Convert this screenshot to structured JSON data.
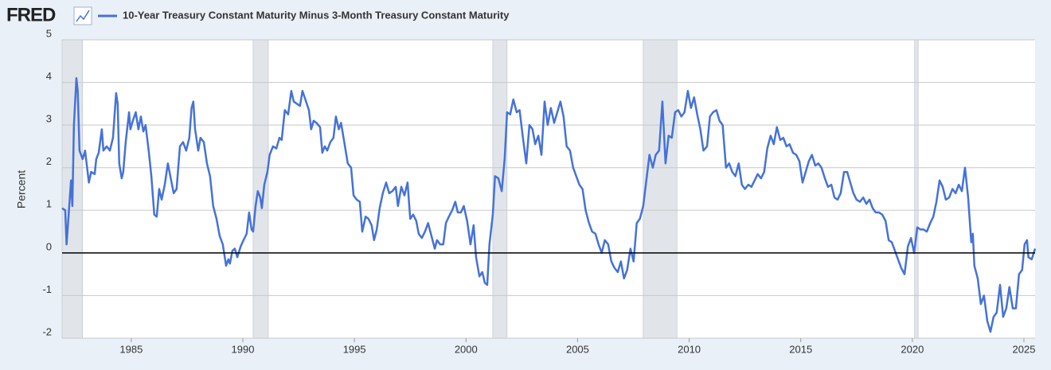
{
  "chart_data": {
    "type": "line",
    "logo": "FRED",
    "y_label": "Percent",
    "grid": true,
    "zero_line": true,
    "xlim": [
      1981.9,
      2025.5
    ],
    "ylim": [
      -2,
      5
    ],
    "xticks": [
      1985,
      1990,
      1995,
      2000,
      2005,
      2010,
      2015,
      2020,
      2025
    ],
    "yticks": [
      -2,
      -1,
      0,
      1,
      2,
      3,
      4,
      5
    ],
    "recession_color": "#e1e5ea",
    "recessions": [
      [
        1981.9,
        1982.82
      ],
      [
        1990.46,
        1991.14
      ],
      [
        2001.2,
        2001.84
      ],
      [
        2007.94,
        2009.45
      ],
      [
        2020.1,
        2020.26
      ]
    ],
    "x": [
      1981.9,
      1982.04,
      1982.1,
      1982.3,
      1982.36,
      1982.43,
      1982.54,
      1982.6,
      1982.68,
      1982.82,
      1982.93,
      1983.1,
      1983.2,
      1983.36,
      1983.43,
      1983.54,
      1983.68,
      1983.75,
      1983.9,
      1984.04,
      1984.18,
      1984.32,
      1984.39,
      1984.46,
      1984.57,
      1984.64,
      1984.75,
      1984.9,
      1984.96,
      1985.07,
      1985.2,
      1985.32,
      1985.43,
      1985.54,
      1985.64,
      1985.78,
      1985.9,
      1986.03,
      1986.14,
      1986.25,
      1986.36,
      1986.5,
      1986.64,
      1986.75,
      1986.9,
      1987.03,
      1987.18,
      1987.32,
      1987.46,
      1987.6,
      1987.7,
      1987.78,
      1987.86,
      1988.0,
      1988.1,
      1988.25,
      1988.39,
      1988.53,
      1988.67,
      1988.82,
      1988.96,
      1989.1,
      1989.25,
      1989.35,
      1989.42,
      1989.53,
      1989.64,
      1989.75,
      1989.9,
      1990.03,
      1990.17,
      1990.28,
      1990.39,
      1990.46,
      1990.57,
      1990.67,
      1990.78,
      1990.85,
      1990.96,
      1991.1,
      1991.2,
      1991.35,
      1991.5,
      1991.64,
      1991.74,
      1991.88,
      1992.03,
      1992.17,
      1992.28,
      1992.42,
      1992.56,
      1992.67,
      1992.8,
      1992.96,
      1993.06,
      1993.17,
      1993.3,
      1993.46,
      1993.56,
      1993.67,
      1993.78,
      1993.92,
      1994.06,
      1994.17,
      1994.3,
      1994.4,
      1994.56,
      1994.7,
      1994.85,
      1994.96,
      1995.1,
      1995.24,
      1995.35,
      1995.5,
      1995.63,
      1995.77,
      1995.88,
      1996.0,
      1996.13,
      1996.27,
      1996.42,
      1996.56,
      1996.7,
      1996.85,
      1996.95,
      1997.1,
      1997.24,
      1997.38,
      1997.5,
      1997.63,
      1997.77,
      1997.88,
      1998.02,
      1998.16,
      1998.3,
      1998.45,
      1998.6,
      1998.7,
      1998.84,
      1998.98,
      1999.1,
      1999.23,
      1999.38,
      1999.52,
      1999.63,
      1999.77,
      1999.9,
      2000.05,
      2000.2,
      2000.34,
      2000.45,
      2000.6,
      2000.73,
      2000.84,
      2000.95,
      2001.05,
      2001.2,
      2001.3,
      2001.45,
      2001.6,
      2001.73,
      2001.84,
      2001.98,
      2002.12,
      2002.27,
      2002.4,
      2002.55,
      2002.7,
      2002.84,
      2002.98,
      2003.1,
      2003.24,
      2003.38,
      2003.52,
      2003.66,
      2003.8,
      2003.95,
      2004.09,
      2004.23,
      2004.37,
      2004.51,
      2004.66,
      2004.8,
      2004.94,
      2005.08,
      2005.22,
      2005.36,
      2005.51,
      2005.65,
      2005.8,
      2005.94,
      2006.08,
      2006.22,
      2006.37,
      2006.51,
      2006.65,
      2006.8,
      2006.94,
      2007.08,
      2007.22,
      2007.37,
      2007.51,
      2007.65,
      2007.79,
      2007.94,
      2008.08,
      2008.22,
      2008.37,
      2008.5,
      2008.65,
      2008.8,
      2008.94,
      2009.08,
      2009.22,
      2009.37,
      2009.51,
      2009.65,
      2009.79,
      2009.94,
      2010.08,
      2010.22,
      2010.36,
      2010.5,
      2010.64,
      2010.8,
      2010.93,
      2011.07,
      2011.22,
      2011.36,
      2011.5,
      2011.65,
      2011.79,
      2011.93,
      2012.07,
      2012.22,
      2012.36,
      2012.5,
      2012.65,
      2012.79,
      2012.93,
      2013.07,
      2013.22,
      2013.36,
      2013.5,
      2013.65,
      2013.79,
      2013.93,
      2014.08,
      2014.22,
      2014.36,
      2014.5,
      2014.65,
      2014.8,
      2014.94,
      2015.08,
      2015.22,
      2015.36,
      2015.5,
      2015.65,
      2015.79,
      2015.93,
      2016.08,
      2016.22,
      2016.37,
      2016.51,
      2016.65,
      2016.79,
      2016.94,
      2017.08,
      2017.22,
      2017.36,
      2017.5,
      2017.65,
      2017.8,
      2017.94,
      2018.08,
      2018.22,
      2018.36,
      2018.5,
      2018.65,
      2018.8,
      2018.94,
      2019.08,
      2019.22,
      2019.36,
      2019.5,
      2019.65,
      2019.8,
      2019.94,
      2020.08,
      2020.22,
      2020.36,
      2020.5,
      2020.65,
      2020.8,
      2020.94,
      2021.08,
      2021.22,
      2021.36,
      2021.5,
      2021.65,
      2021.8,
      2021.94,
      2022.08,
      2022.22,
      2022.36,
      2022.5,
      2022.64,
      2022.71,
      2022.78,
      2022.93,
      2023.07,
      2023.21,
      2023.36,
      2023.5,
      2023.64,
      2023.78,
      2023.93,
      2024.07,
      2024.21,
      2024.35,
      2024.5,
      2024.64,
      2024.78,
      2024.92,
      2025.03,
      2025.14,
      2025.2,
      2025.35,
      2025.5
    ],
    "series": [
      {
        "name": "10-Year Treasury Constant Maturity Minus 3-Month Treasury Constant Maturity",
        "color": "#4572d8",
        "values": [
          1.05,
          1.0,
          0.2,
          1.7,
          1.1,
          3.0,
          4.1,
          3.8,
          2.4,
          2.2,
          2.4,
          1.65,
          1.9,
          1.85,
          2.2,
          2.35,
          2.9,
          2.4,
          2.5,
          2.4,
          2.7,
          3.75,
          3.5,
          2.1,
          1.75,
          1.9,
          2.6,
          3.3,
          2.9,
          3.1,
          3.3,
          2.9,
          3.2,
          2.85,
          3.0,
          2.4,
          1.8,
          0.9,
          0.85,
          1.5,
          1.25,
          1.6,
          2.1,
          1.8,
          1.4,
          1.5,
          2.5,
          2.6,
          2.4,
          2.7,
          3.4,
          3.55,
          2.9,
          2.4,
          2.7,
          2.6,
          2.1,
          1.8,
          1.1,
          0.8,
          0.4,
          0.2,
          -0.3,
          -0.15,
          -0.25,
          0.05,
          0.1,
          -0.1,
          0.15,
          0.3,
          0.45,
          0.95,
          0.55,
          0.5,
          1.1,
          1.45,
          1.3,
          1.05,
          1.6,
          1.9,
          2.3,
          2.5,
          2.45,
          2.7,
          2.65,
          3.35,
          3.25,
          3.8,
          3.55,
          3.5,
          3.45,
          3.8,
          3.6,
          3.35,
          2.9,
          3.1,
          3.05,
          2.95,
          2.35,
          2.5,
          2.4,
          2.6,
          2.7,
          3.2,
          2.9,
          3.05,
          2.55,
          2.1,
          2.0,
          1.35,
          1.25,
          1.2,
          0.5,
          0.85,
          0.8,
          0.65,
          0.3,
          0.55,
          1.05,
          1.4,
          1.65,
          1.4,
          1.45,
          1.55,
          1.1,
          1.55,
          1.35,
          1.65,
          0.8,
          0.9,
          0.75,
          0.45,
          0.35,
          0.5,
          0.7,
          0.4,
          0.1,
          0.3,
          0.2,
          0.2,
          0.7,
          0.85,
          1.0,
          1.2,
          0.95,
          0.95,
          1.1,
          0.75,
          0.2,
          0.65,
          -0.1,
          -0.55,
          -0.45,
          -0.7,
          -0.75,
          0.2,
          0.9,
          1.8,
          1.75,
          1.45,
          2.2,
          3.3,
          3.25,
          3.6,
          3.3,
          3.35,
          2.7,
          2.1,
          3.0,
          2.9,
          2.55,
          2.75,
          2.3,
          3.55,
          3.0,
          3.4,
          3.05,
          3.3,
          3.55,
          3.2,
          2.5,
          2.4,
          2.0,
          1.8,
          1.6,
          1.5,
          1.0,
          0.7,
          0.5,
          0.45,
          0.2,
          0.0,
          0.3,
          0.2,
          -0.2,
          -0.35,
          -0.45,
          -0.2,
          -0.6,
          -0.4,
          0.1,
          -0.2,
          0.7,
          0.8,
          1.1,
          1.7,
          2.3,
          2.0,
          2.3,
          2.4,
          3.55,
          2.1,
          2.75,
          2.7,
          3.3,
          3.35,
          3.2,
          3.3,
          3.8,
          3.4,
          3.65,
          3.25,
          2.9,
          2.4,
          2.5,
          3.2,
          3.3,
          3.35,
          3.1,
          3.0,
          2.0,
          2.1,
          1.9,
          1.8,
          2.1,
          1.6,
          1.5,
          1.6,
          1.55,
          1.7,
          1.85,
          1.75,
          1.9,
          2.45,
          2.75,
          2.55,
          2.95,
          2.65,
          2.7,
          2.5,
          2.55,
          2.35,
          2.3,
          2.15,
          1.65,
          1.9,
          2.15,
          2.3,
          2.05,
          2.1,
          2.0,
          1.75,
          1.55,
          1.6,
          1.3,
          1.25,
          1.4,
          1.9,
          1.9,
          1.65,
          1.4,
          1.25,
          1.2,
          1.3,
          1.15,
          1.25,
          1.05,
          0.95,
          0.95,
          0.9,
          0.75,
          0.3,
          0.25,
          0.05,
          -0.15,
          -0.35,
          -0.5,
          0.15,
          0.35,
          0.0,
          0.6,
          0.55,
          0.55,
          0.5,
          0.7,
          0.85,
          1.2,
          1.7,
          1.55,
          1.25,
          1.3,
          1.5,
          1.4,
          1.6,
          1.45,
          2.0,
          1.3,
          0.25,
          0.45,
          -0.3,
          -0.6,
          -1.2,
          -1.0,
          -1.6,
          -1.85,
          -1.5,
          -1.4,
          -0.75,
          -1.5,
          -1.3,
          -0.8,
          -1.3,
          -1.3,
          -0.5,
          -0.4,
          0.2,
          0.3,
          -0.1,
          -0.15,
          0.1
        ]
      }
    ]
  }
}
